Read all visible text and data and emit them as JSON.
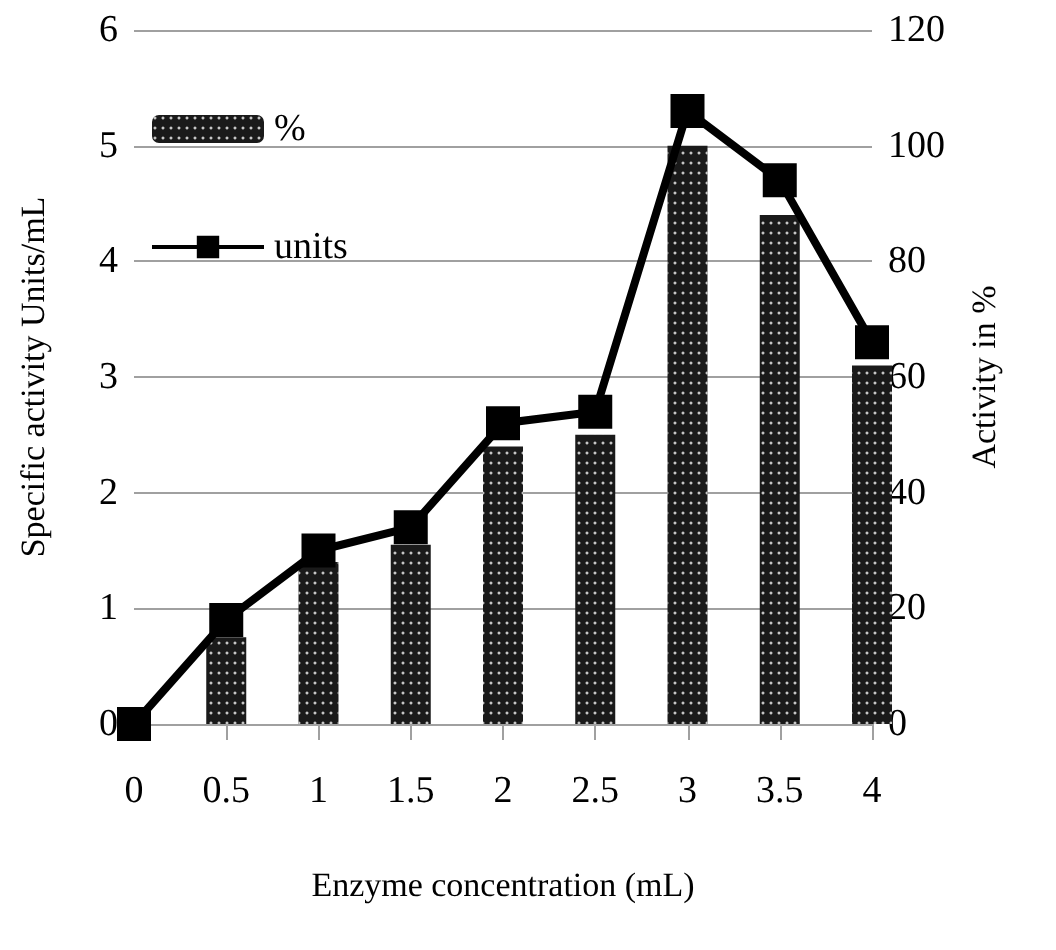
{
  "chart_data": {
    "type": "bar",
    "xlabel": "Enzyme concentration (mL)",
    "ylabel": "Specific activity Units/mL",
    "y2label": "Activity in %",
    "categories": [
      "0",
      "0.5",
      "1",
      "1.5",
      "2",
      "2.5",
      "3",
      "3.5",
      "4"
    ],
    "series": [
      {
        "name": "%",
        "axis": "y2",
        "color": "#1a1a1a",
        "values": [
          0,
          15,
          28,
          31,
          48,
          50,
          100,
          88,
          62
        ]
      },
      {
        "name": "units",
        "type": "line",
        "color": "#000000",
        "marker": "square",
        "line_style": "solid",
        "values": [
          0,
          0.9,
          1.5,
          1.7,
          2.6,
          2.7,
          5.3,
          4.7,
          3.3
        ]
      }
    ],
    "ylim": [
      0,
      6
    ],
    "yticks": [
      0,
      1,
      2,
      3,
      4,
      5,
      6
    ],
    "y2lim": [
      0,
      120
    ],
    "y2ticks": [
      0,
      20,
      40,
      60,
      80,
      100,
      120
    ],
    "grid": "y",
    "legend": "top left"
  }
}
